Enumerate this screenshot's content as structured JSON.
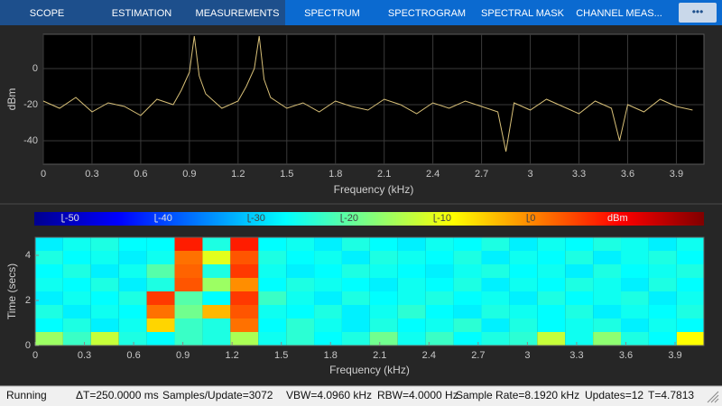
{
  "toolbar": {
    "tabs": [
      "SCOPE",
      "ESTIMATION",
      "MEASUREMENTS",
      "SPECTRUM",
      "SPECTROGRAM",
      "SPECTRAL MASK",
      "CHANNEL MEAS..."
    ]
  },
  "chart_data": [
    {
      "type": "line",
      "x_label": "Frequency (kHz)",
      "y_label": "dBm",
      "x": [
        0,
        0.1,
        0.2,
        0.3,
        0.4,
        0.5,
        0.6,
        0.7,
        0.8,
        0.85,
        0.9,
        0.93,
        0.96,
        1.0,
        1.1,
        1.2,
        1.25,
        1.3,
        1.33,
        1.36,
        1.4,
        1.5,
        1.6,
        1.7,
        1.8,
        1.9,
        2.0,
        2.1,
        2.2,
        2.3,
        2.4,
        2.5,
        2.6,
        2.7,
        2.8,
        2.85,
        2.9,
        3.0,
        3.1,
        3.2,
        3.3,
        3.4,
        3.5,
        3.55,
        3.6,
        3.7,
        3.8,
        3.9,
        4.0
      ],
      "values": [
        -18,
        -22,
        -16,
        -24,
        -19,
        -21,
        -26,
        -17,
        -20,
        -12,
        -2,
        18,
        -4,
        -14,
        -22,
        -18,
        -10,
        0,
        18,
        -6,
        -16,
        -22,
        -19,
        -24,
        -18,
        -21,
        -23,
        -17,
        -20,
        -25,
        -19,
        -22,
        -18,
        -21,
        -24,
        -46,
        -19,
        -23,
        -17,
        -21,
        -25,
        -18,
        -22,
        -40,
        -20,
        -24,
        -17,
        -21,
        -23
      ],
      "color": "#d8c078",
      "xlim": [
        0,
        4.07
      ],
      "ylim": [
        -53,
        19
      ],
      "xticks": [
        0,
        0.3,
        0.6,
        0.9,
        1.2,
        1.5,
        1.8,
        2.1,
        2.4,
        2.7,
        3,
        3.3,
        3.6,
        3.9
      ],
      "yticks": [
        -40,
        -20,
        0
      ],
      "grid": true
    },
    {
      "type": "heatmap",
      "x_label": "Frequency (kHz)",
      "y_label": "Time (secs)",
      "colormap": "jet",
      "xbins": [
        0,
        0.17,
        0.34,
        0.51,
        0.68,
        0.85,
        1.02,
        1.19,
        1.36,
        1.53,
        1.7,
        1.87,
        2.04,
        2.21,
        2.38,
        2.55,
        2.72,
        2.89,
        3.06,
        3.23,
        3.4,
        3.57,
        3.74,
        3.91,
        4.08
      ],
      "ybins": [
        0,
        0.6,
        1.2,
        1.8,
        2.4,
        3.0,
        3.6,
        4.2,
        4.8
      ],
      "values": [
        [
          -15,
          -22,
          -12,
          -24,
          -26,
          -22,
          -24,
          -14,
          -25,
          -23,
          -26,
          -24,
          -18,
          -25,
          -22,
          -26,
          -24,
          -23,
          -12,
          -25,
          -16,
          -24,
          -26,
          -8
        ],
        [
          -26,
          -24,
          -27,
          -25,
          -5,
          -22,
          -24,
          2,
          -26,
          -23,
          -25,
          -27,
          -24,
          -26,
          -25,
          -23,
          -27,
          -24,
          -26,
          -25,
          -24,
          -27,
          -25,
          -26
        ],
        [
          -24,
          -27,
          -25,
          -26,
          2,
          -18,
          -3,
          4,
          -25,
          -26,
          -24,
          -27,
          -25,
          -23,
          -26,
          -27,
          -24,
          -25,
          -26,
          -24,
          -27,
          -25,
          -26,
          -24
        ],
        [
          -27,
          -25,
          -26,
          -24,
          6,
          -20,
          -26,
          6,
          -22,
          -25,
          -27,
          -24,
          -26,
          -25,
          -24,
          -26,
          -25,
          -27,
          -24,
          -26,
          -25,
          -24,
          -27,
          -25
        ],
        [
          -25,
          -26,
          -24,
          -27,
          -24,
          4,
          -15,
          0,
          -26,
          -24,
          -25,
          -26,
          -27,
          -25,
          -26,
          -24,
          -27,
          -25,
          -26,
          -24,
          -25,
          -27,
          -24,
          -26
        ],
        [
          -26,
          -24,
          -27,
          -25,
          -20,
          3,
          -24,
          6,
          -25,
          -27,
          -26,
          -24,
          -25,
          -26,
          -27,
          -25,
          -24,
          -26,
          -25,
          -27,
          -24,
          -26,
          -25,
          -24
        ],
        [
          -24,
          -26,
          -25,
          -27,
          -25,
          2,
          -10,
          4,
          -24,
          -26,
          -25,
          -27,
          -24,
          -25,
          -26,
          -24,
          -27,
          -25,
          -26,
          -24,
          -27,
          -25,
          -24,
          -26
        ],
        [
          -27,
          -25,
          -24,
          -26,
          -26,
          8,
          -24,
          8,
          -26,
          -25,
          -27,
          -24,
          -26,
          -27,
          -25,
          -26,
          -24,
          -27,
          -25,
          -26,
          -24,
          -25,
          -27,
          -25
        ]
      ],
      "xlim": [
        0,
        4.076
      ],
      "ylim": [
        0,
        4.8
      ],
      "xticks": [
        0,
        0.3,
        0.6,
        0.9,
        1.2,
        1.5,
        1.8,
        2.1,
        2.4,
        2.7,
        3,
        3.3,
        3.6,
        3.9
      ],
      "yticks": [
        0,
        2,
        4
      ],
      "colorbar": {
        "lim": [
          -53,
          19
        ],
        "ticks": [
          -50,
          -40,
          -30,
          -20,
          -10,
          0
        ],
        "label": "dBm"
      }
    }
  ],
  "status_bar": {
    "state": "Running",
    "items": [
      "ΔT=250.0000 ms",
      "Samples/Update=3072",
      "VBW=4.0960 kHz",
      "RBW=4.0000 Hz",
      "Sample Rate=8.1920 kHz",
      "Updates=12",
      "T=4.7813"
    ]
  }
}
